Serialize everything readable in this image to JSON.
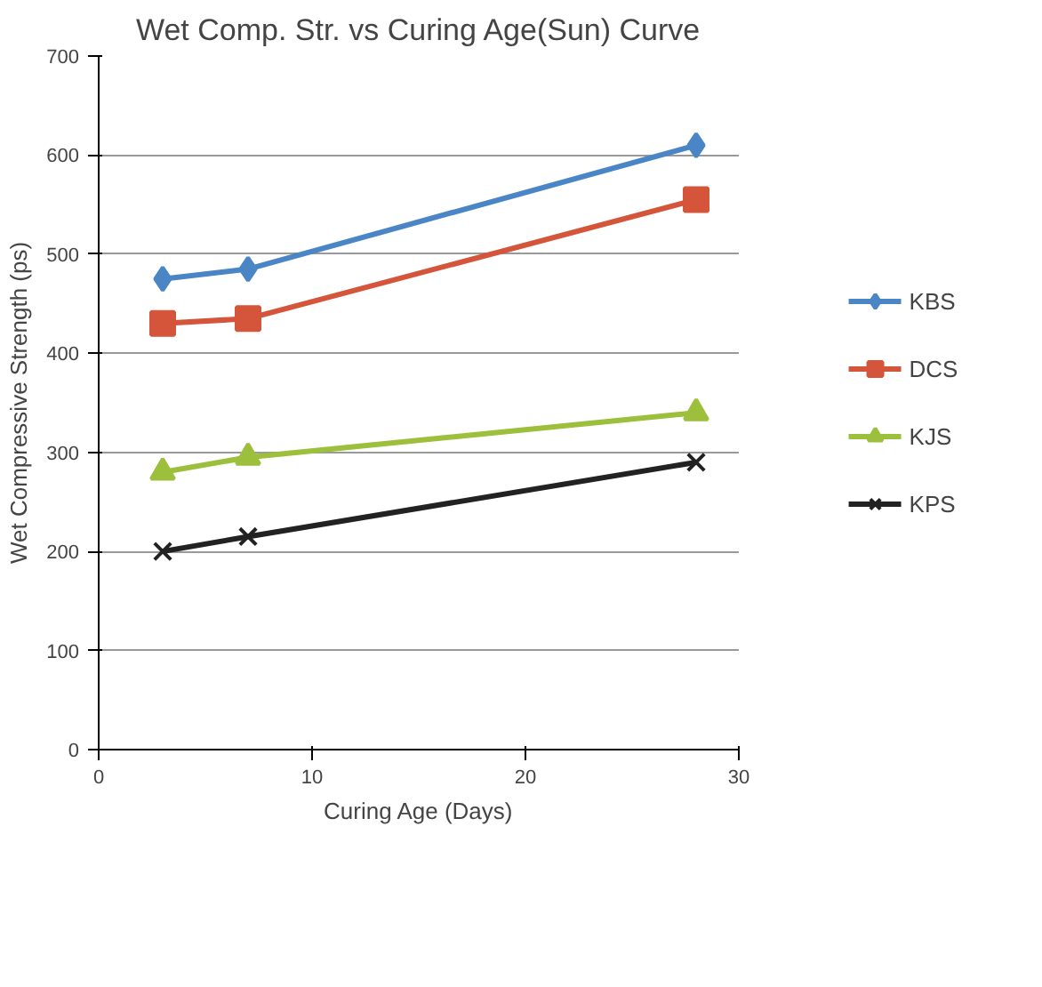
{
  "chart_data": {
    "type": "line",
    "title": "Wet Comp. Str. vs Curing Age(Sun) Curve",
    "xlabel": "Curing Age (Days)",
    "ylabel": "Wet Compressive Strength (ps)",
    "x": [
      3,
      7,
      28
    ],
    "series": [
      {
        "name": "KBS",
        "color": "#4a86c6",
        "marker": "diamond",
        "values": [
          475,
          485,
          610
        ]
      },
      {
        "name": "DCS",
        "color": "#d4553a",
        "marker": "square",
        "values": [
          430,
          435,
          555
        ]
      },
      {
        "name": "KJS",
        "color": "#9cbf3c",
        "marker": "triangle",
        "values": [
          280,
          295,
          340
        ]
      },
      {
        "name": "KPS",
        "color": "#222222",
        "marker": "cross",
        "values": [
          200,
          215,
          290
        ]
      }
    ],
    "xlim": [
      0,
      30
    ],
    "xticks": [
      0,
      10,
      20,
      30
    ],
    "ylim": [
      0,
      700
    ],
    "yticks": [
      0,
      100,
      200,
      300,
      400,
      500,
      600,
      700
    ],
    "grid": "y",
    "legend": "right"
  }
}
